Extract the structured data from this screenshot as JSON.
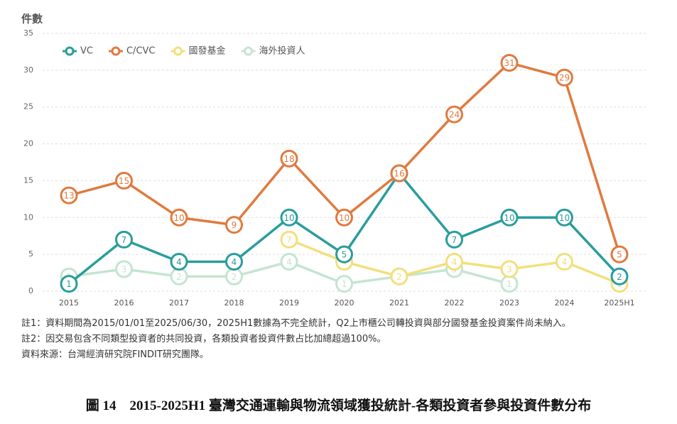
{
  "chart_data": {
    "type": "line",
    "y_label": "件數",
    "categories": [
      "2015",
      "2016",
      "2017",
      "2018",
      "2019",
      "2020",
      "2021",
      "2022",
      "2023",
      "2024",
      "2025H1"
    ],
    "series": [
      {
        "name": "VC",
        "color": "#2a9d9c",
        "values": [
          1,
          7,
          4,
          4,
          10,
          5,
          16,
          7,
          10,
          10,
          2
        ]
      },
      {
        "name": "C/CVC",
        "color": "#e07a3f",
        "values": [
          13,
          15,
          10,
          9,
          18,
          10,
          16,
          24,
          31,
          29,
          5
        ]
      },
      {
        "name": "國發基金",
        "color": "#f3df7c",
        "values": [
          null,
          null,
          null,
          null,
          7,
          4,
          2,
          4,
          3,
          4,
          1
        ]
      },
      {
        "name": "海外投資人",
        "color": "#c4e5d1",
        "values": [
          2,
          3,
          2,
          2,
          4,
          1,
          2,
          3,
          1,
          null,
          null
        ]
      }
    ],
    "ylim": [
      0,
      35
    ],
    "yticks": [
      0,
      5,
      10,
      15,
      20,
      25,
      30,
      35
    ],
    "grid": true,
    "notes": [
      "註1：資料期間為2015/01/01至2025/06/30，2025H1數據為不完全統計，Q2上市櫃公司轉投資與部分國發基金投資案件尚未納入。",
      "註2：因交易包含不同類型投資者的共同投資，各類投資者投資件數占比加總超過100%。",
      "資料來源：台灣經濟研究院FINDIT研究團隊。"
    ],
    "caption": "圖 14　2015-2025H1 臺灣交通運輸與物流領域獲投統計-各類投資者參與投資件數分布"
  }
}
